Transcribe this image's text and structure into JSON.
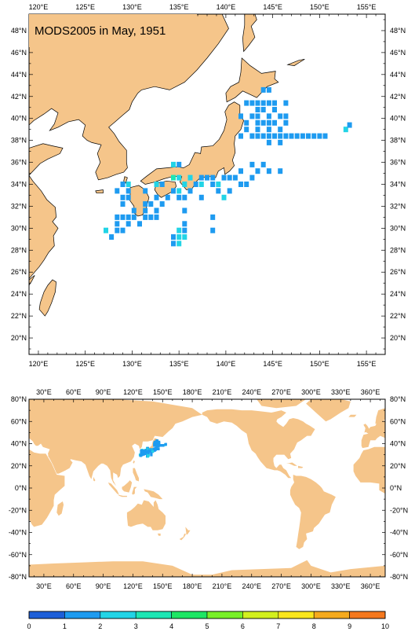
{
  "title": "MODS2005 in May, 1951",
  "colors": {
    "land": "#f5c58a",
    "sea": "#ffffff",
    "frame": "#000000",
    "coast": "#000000"
  },
  "regional_map": {
    "lon_range": [
      119,
      157
    ],
    "lat_range": [
      18.5,
      49.5
    ],
    "top_labels": [
      "120°E",
      "125°E",
      "130°E",
      "135°E",
      "140°E",
      "145°E",
      "150°E",
      "155°E"
    ],
    "top_lon_values": [
      120,
      125,
      130,
      135,
      140,
      145,
      150,
      155
    ],
    "bottom_labels": [
      "120°E",
      "125°E",
      "130°E",
      "135°E",
      "140°E",
      "145°E",
      "150°E",
      "155°E"
    ],
    "lat_labels": [
      "48°N",
      "46°N",
      "44°N",
      "42°N",
      "40°N",
      "38°N",
      "36°N",
      "34°N",
      "32°N",
      "30°N",
      "28°N",
      "26°N",
      "24°N",
      "22°N",
      "20°N"
    ],
    "lat_values": [
      48,
      46,
      44,
      42,
      40,
      38,
      36,
      34,
      32,
      30,
      28,
      26,
      24,
      22,
      20
    ]
  },
  "global_map": {
    "lon_range": [
      15,
      375
    ],
    "lat_range": [
      -80,
      80
    ],
    "lon_labels": [
      "30°E",
      "60°E",
      "90°E",
      "120°E",
      "150°E",
      "180°E",
      "210°E",
      "240°E",
      "270°E",
      "300°E",
      "330°E",
      "360°E"
    ],
    "lon_values": [
      30,
      60,
      90,
      120,
      150,
      180,
      210,
      240,
      270,
      300,
      330,
      360
    ],
    "lat_labels": [
      "80°N",
      "60°N",
      "40°N",
      "20°N",
      "0°N",
      "-20°N",
      "-40°N",
      "-60°N",
      "-80°N"
    ],
    "lat_values": [
      80,
      60,
      40,
      20,
      0,
      -20,
      -40,
      -60,
      -80
    ]
  },
  "colorbar": {
    "labels": [
      "0",
      "1",
      "2",
      "3",
      "4",
      "5",
      "6",
      "7",
      "8",
      "9",
      "10"
    ],
    "colors": [
      "#1e5fd8",
      "#1e9bf0",
      "#22d4e6",
      "#1ee6b4",
      "#1ee664",
      "#78f028",
      "#d2f01e",
      "#fae61e",
      "#f5aa1e",
      "#f5781e"
    ]
  },
  "observation_cells": [
    {
      "lon": 144.0,
      "lat": 42.6,
      "value": 1
    },
    {
      "lon": 144.6,
      "lat": 42.6,
      "value": 1
    },
    {
      "lon": 142.2,
      "lat": 41.4,
      "value": 1
    },
    {
      "lon": 142.8,
      "lat": 41.4,
      "value": 1
    },
    {
      "lon": 143.4,
      "lat": 41.4,
      "value": 1
    },
    {
      "lon": 144.0,
      "lat": 41.4,
      "value": 1
    },
    {
      "lon": 144.6,
      "lat": 41.4,
      "value": 1
    },
    {
      "lon": 145.2,
      "lat": 41.4,
      "value": 1
    },
    {
      "lon": 146.4,
      "lat": 41.4,
      "value": 1
    },
    {
      "lon": 143.4,
      "lat": 40.8,
      "value": 1
    },
    {
      "lon": 144.0,
      "lat": 40.8,
      "value": 1
    },
    {
      "lon": 145.2,
      "lat": 40.8,
      "value": 1
    },
    {
      "lon": 141.6,
      "lat": 40.2,
      "value": 1
    },
    {
      "lon": 142.8,
      "lat": 40.2,
      "value": 1
    },
    {
      "lon": 143.4,
      "lat": 40.2,
      "value": 1
    },
    {
      "lon": 144.6,
      "lat": 40.2,
      "value": 1
    },
    {
      "lon": 145.8,
      "lat": 40.2,
      "value": 1
    },
    {
      "lon": 146.4,
      "lat": 40.2,
      "value": 1
    },
    {
      "lon": 142.2,
      "lat": 39.6,
      "value": 1
    },
    {
      "lon": 143.4,
      "lat": 39.6,
      "value": 1
    },
    {
      "lon": 144.0,
      "lat": 39.6,
      "value": 1
    },
    {
      "lon": 144.6,
      "lat": 39.6,
      "value": 1
    },
    {
      "lon": 145.2,
      "lat": 39.6,
      "value": 1
    },
    {
      "lon": 146.4,
      "lat": 39.6,
      "value": 1
    },
    {
      "lon": 142.2,
      "lat": 39.0,
      "value": 1
    },
    {
      "lon": 143.4,
      "lat": 39.0,
      "value": 1
    },
    {
      "lon": 144.6,
      "lat": 39.0,
      "value": 1
    },
    {
      "lon": 145.8,
      "lat": 39.0,
      "value": 1
    },
    {
      "lon": 152.8,
      "lat": 39.0,
      "value": 2
    },
    {
      "lon": 153.2,
      "lat": 39.4,
      "value": 1
    },
    {
      "lon": 141.6,
      "lat": 38.4,
      "value": 1
    },
    {
      "lon": 142.8,
      "lat": 38.4,
      "value": 1
    },
    {
      "lon": 143.4,
      "lat": 38.4,
      "value": 1
    },
    {
      "lon": 144.0,
      "lat": 38.4,
      "value": 1
    },
    {
      "lon": 144.6,
      "lat": 38.4,
      "value": 1
    },
    {
      "lon": 145.2,
      "lat": 38.4,
      "value": 1
    },
    {
      "lon": 145.8,
      "lat": 38.4,
      "value": 1
    },
    {
      "lon": 146.4,
      "lat": 38.4,
      "value": 1
    },
    {
      "lon": 147.0,
      "lat": 38.4,
      "value": 1
    },
    {
      "lon": 147.6,
      "lat": 38.4,
      "value": 1
    },
    {
      "lon": 148.2,
      "lat": 38.4,
      "value": 1
    },
    {
      "lon": 148.8,
      "lat": 38.4,
      "value": 1
    },
    {
      "lon": 149.4,
      "lat": 38.4,
      "value": 1
    },
    {
      "lon": 150.0,
      "lat": 38.4,
      "value": 1
    },
    {
      "lon": 150.6,
      "lat": 38.4,
      "value": 1
    },
    {
      "lon": 144.6,
      "lat": 37.8,
      "value": 1
    },
    {
      "lon": 145.8,
      "lat": 37.8,
      "value": 1
    },
    {
      "lon": 134.4,
      "lat": 35.8,
      "value": 2
    },
    {
      "lon": 135.0,
      "lat": 35.8,
      "value": 1
    },
    {
      "lon": 142.8,
      "lat": 35.8,
      "value": 1
    },
    {
      "lon": 144.0,
      "lat": 35.8,
      "value": 1
    },
    {
      "lon": 141.6,
      "lat": 35.2,
      "value": 1
    },
    {
      "lon": 143.4,
      "lat": 35.2,
      "value": 1
    },
    {
      "lon": 144.6,
      "lat": 35.2,
      "value": 1
    },
    {
      "lon": 145.8,
      "lat": 35.2,
      "value": 1
    },
    {
      "lon": 134.4,
      "lat": 34.6,
      "value": 3
    },
    {
      "lon": 135.0,
      "lat": 34.6,
      "value": 2
    },
    {
      "lon": 136.2,
      "lat": 34.6,
      "value": 2
    },
    {
      "lon": 137.4,
      "lat": 34.6,
      "value": 1
    },
    {
      "lon": 138.0,
      "lat": 34.6,
      "value": 1
    },
    {
      "lon": 138.6,
      "lat": 34.6,
      "value": 1
    },
    {
      "lon": 139.8,
      "lat": 34.6,
      "value": 1
    },
    {
      "lon": 140.4,
      "lat": 34.6,
      "value": 1
    },
    {
      "lon": 141.0,
      "lat": 34.6,
      "value": 1
    },
    {
      "lon": 142.8,
      "lat": 34.6,
      "value": 1
    },
    {
      "lon": 129.0,
      "lat": 34.0,
      "value": 1
    },
    {
      "lon": 129.6,
      "lat": 34.0,
      "value": 2
    },
    {
      "lon": 132.6,
      "lat": 34.0,
      "value": 2
    },
    {
      "lon": 133.2,
      "lat": 34.0,
      "value": 1
    },
    {
      "lon": 135.6,
      "lat": 34.0,
      "value": 2
    },
    {
      "lon": 136.8,
      "lat": 34.0,
      "value": 1
    },
    {
      "lon": 137.4,
      "lat": 34.0,
      "value": 2
    },
    {
      "lon": 138.6,
      "lat": 34.0,
      "value": 1
    },
    {
      "lon": 139.2,
      "lat": 34.0,
      "value": 2
    },
    {
      "lon": 141.6,
      "lat": 34.0,
      "value": 1
    },
    {
      "lon": 142.2,
      "lat": 34.0,
      "value": 1
    },
    {
      "lon": 128.4,
      "lat": 33.4,
      "value": 1
    },
    {
      "lon": 129.6,
      "lat": 33.4,
      "value": 1
    },
    {
      "lon": 131.4,
      "lat": 33.4,
      "value": 1
    },
    {
      "lon": 134.4,
      "lat": 33.4,
      "value": 1
    },
    {
      "lon": 135.0,
      "lat": 33.4,
      "value": 2
    },
    {
      "lon": 136.2,
      "lat": 33.4,
      "value": 1
    },
    {
      "lon": 139.2,
      "lat": 33.4,
      "value": 1
    },
    {
      "lon": 140.4,
      "lat": 33.4,
      "value": 1
    },
    {
      "lon": 129.0,
      "lat": 32.8,
      "value": 1
    },
    {
      "lon": 129.6,
      "lat": 32.8,
      "value": 1
    },
    {
      "lon": 132.6,
      "lat": 32.8,
      "value": 1
    },
    {
      "lon": 133.8,
      "lat": 32.8,
      "value": 1
    },
    {
      "lon": 135.0,
      "lat": 32.8,
      "value": 1
    },
    {
      "lon": 135.6,
      "lat": 32.8,
      "value": 1
    },
    {
      "lon": 137.4,
      "lat": 32.8,
      "value": 1
    },
    {
      "lon": 139.8,
      "lat": 32.8,
      "value": 2
    },
    {
      "lon": 129.0,
      "lat": 32.2,
      "value": 1
    },
    {
      "lon": 131.4,
      "lat": 32.2,
      "value": 1
    },
    {
      "lon": 132.0,
      "lat": 32.2,
      "value": 1
    },
    {
      "lon": 133.2,
      "lat": 32.2,
      "value": 1
    },
    {
      "lon": 130.2,
      "lat": 31.6,
      "value": 1
    },
    {
      "lon": 131.4,
      "lat": 31.6,
      "value": 1
    },
    {
      "lon": 132.6,
      "lat": 31.6,
      "value": 1
    },
    {
      "lon": 135.6,
      "lat": 31.6,
      "value": 1
    },
    {
      "lon": 128.4,
      "lat": 31.0,
      "value": 1
    },
    {
      "lon": 129.0,
      "lat": 31.0,
      "value": 1
    },
    {
      "lon": 129.6,
      "lat": 31.0,
      "value": 1
    },
    {
      "lon": 130.2,
      "lat": 31.0,
      "value": 1
    },
    {
      "lon": 131.4,
      "lat": 31.0,
      "value": 1
    },
    {
      "lon": 132.0,
      "lat": 31.0,
      "value": 1
    },
    {
      "lon": 132.6,
      "lat": 31.0,
      "value": 1
    },
    {
      "lon": 138.6,
      "lat": 31.0,
      "value": 1
    },
    {
      "lon": 128.4,
      "lat": 30.4,
      "value": 1
    },
    {
      "lon": 129.6,
      "lat": 30.4,
      "value": 1
    },
    {
      "lon": 130.8,
      "lat": 30.4,
      "value": 1
    },
    {
      "lon": 135.6,
      "lat": 30.4,
      "value": 1
    },
    {
      "lon": 127.2,
      "lat": 29.8,
      "value": 2
    },
    {
      "lon": 128.4,
      "lat": 29.8,
      "value": 1
    },
    {
      "lon": 129.0,
      "lat": 29.8,
      "value": 1
    },
    {
      "lon": 135.0,
      "lat": 29.8,
      "value": 2
    },
    {
      "lon": 135.6,
      "lat": 29.8,
      "value": 1
    },
    {
      "lon": 138.6,
      "lat": 29.8,
      "value": 1
    },
    {
      "lon": 127.8,
      "lat": 29.2,
      "value": 1
    },
    {
      "lon": 134.4,
      "lat": 29.2,
      "value": 1
    },
    {
      "lon": 135.0,
      "lat": 29.2,
      "value": 2
    },
    {
      "lon": 135.6,
      "lat": 29.2,
      "value": 2
    },
    {
      "lon": 134.4,
      "lat": 28.6,
      "value": 1
    },
    {
      "lon": 135.0,
      "lat": 28.6,
      "value": 2
    }
  ]
}
